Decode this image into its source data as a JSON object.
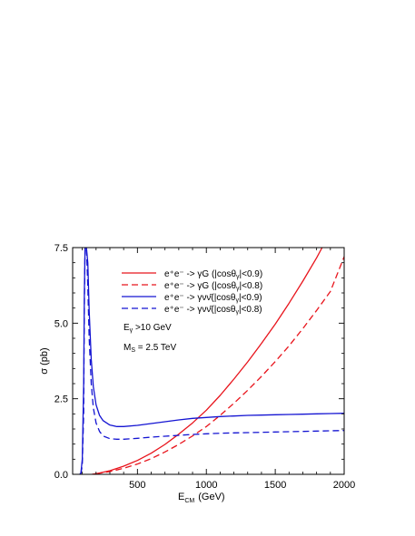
{
  "chart_data": {
    "type": "line",
    "title": "",
    "xlabel": {
      "main": "E",
      "sub": "CM",
      "unit": "(GeV)"
    },
    "ylabel": "σ  (pb)",
    "xlim": [
      30,
      2000
    ],
    "ylim": [
      0,
      7.5
    ],
    "x_ticks": [
      "500",
      "1000",
      "1500",
      "2000"
    ],
    "x_tick_values": [
      500,
      1000,
      1500,
      2000
    ],
    "y_ticks": [
      "0.0",
      "2.5",
      "5.0",
      "7.5"
    ],
    "y_tick_values": [
      0,
      2.5,
      5.0,
      7.5
    ],
    "grid": false,
    "legend_position": "top-center",
    "legend": [
      {
        "text": "e⁺e⁻ -> γG (|cosθ",
        "sub": "γ",
        "tail": "|<0.9)",
        "color": "#e8141c",
        "dash": "solid"
      },
      {
        "text": "e⁺e⁻ -> γG (|cosθ",
        "sub": "γ",
        "tail": "|<0.8)",
        "color": "#e8141c",
        "dash": "dashed"
      },
      {
        "text": "e⁺e⁻ -> γνν̄(|cosθ",
        "sub": "γ",
        "tail": "|<0.9)",
        "color": "#1414d2",
        "dash": "solid"
      },
      {
        "text": "e⁺e⁻ -> γνν̄(|cosθ",
        "sub": "γ",
        "tail": "|<0.8)",
        "color": "#1414d2",
        "dash": "dashed"
      }
    ],
    "annotations": [
      {
        "main": "E",
        "sub": "γ",
        "tail": " >10 GeV"
      },
      {
        "main": "M",
        "sub": "S",
        "tail": " = 2.5 TeV"
      }
    ],
    "series": [
      {
        "color": "#e8141c",
        "dash": "solid",
        "x": [
          170,
          200,
          300,
          400,
          500,
          600,
          700,
          800,
          900,
          1000,
          1100,
          1200,
          1300,
          1400,
          1500,
          1600,
          1700,
          1800,
          1840
        ],
        "y": [
          0.0,
          0.02,
          0.12,
          0.27,
          0.46,
          0.7,
          0.99,
          1.33,
          1.7,
          2.12,
          2.61,
          3.15,
          3.72,
          4.33,
          4.97,
          5.66,
          6.39,
          7.16,
          7.5
        ]
      },
      {
        "color": "#e8141c",
        "dash": "dashed",
        "x": [
          200,
          300,
          400,
          500,
          600,
          700,
          800,
          900,
          1000,
          1100,
          1200,
          1300,
          1400,
          1500,
          1600,
          1700,
          1800,
          1900,
          2000
        ],
        "y": [
          0.02,
          0.09,
          0.2,
          0.34,
          0.52,
          0.74,
          0.99,
          1.27,
          1.58,
          1.95,
          2.35,
          2.78,
          3.24,
          3.73,
          4.25,
          4.82,
          5.42,
          6.05,
          7.2
        ]
      },
      {
        "color": "#1414d2",
        "dash": "solid",
        "x": [
          82,
          90,
          100,
          110,
          115,
          120,
          130,
          140,
          150,
          165,
          180,
          200,
          225,
          250,
          300,
          350,
          400,
          500,
          600,
          700,
          800,
          900,
          1000,
          1100,
          1200,
          1300,
          1400,
          1500,
          1600,
          1700,
          1800,
          1900,
          2000
        ],
        "y": [
          0.0,
          0.05,
          0.5,
          3.0,
          6.0,
          7.5,
          7.5,
          7.0,
          5.4,
          3.8,
          2.9,
          2.3,
          1.95,
          1.78,
          1.63,
          1.58,
          1.58,
          1.62,
          1.68,
          1.74,
          1.8,
          1.85,
          1.88,
          1.91,
          1.93,
          1.95,
          1.96,
          1.97,
          1.98,
          1.99,
          2.0,
          2.01,
          2.02
        ]
      },
      {
        "color": "#1414d2",
        "dash": "dashed",
        "x": [
          90,
          100,
          110,
          115,
          120,
          130,
          140,
          150,
          165,
          180,
          200,
          225,
          250,
          300,
          350,
          400,
          500,
          600,
          700,
          800,
          900,
          1000,
          1100,
          1200,
          1300,
          1400,
          1500,
          1600,
          1700,
          1800,
          1900,
          2000
        ],
        "y": [
          0.02,
          0.3,
          2.0,
          5.5,
          7.5,
          7.5,
          6.2,
          4.5,
          3.0,
          2.2,
          1.7,
          1.42,
          1.27,
          1.18,
          1.16,
          1.16,
          1.19,
          1.23,
          1.26,
          1.29,
          1.32,
          1.34,
          1.36,
          1.37,
          1.38,
          1.39,
          1.4,
          1.41,
          1.42,
          1.43,
          1.44,
          1.45
        ]
      }
    ]
  }
}
